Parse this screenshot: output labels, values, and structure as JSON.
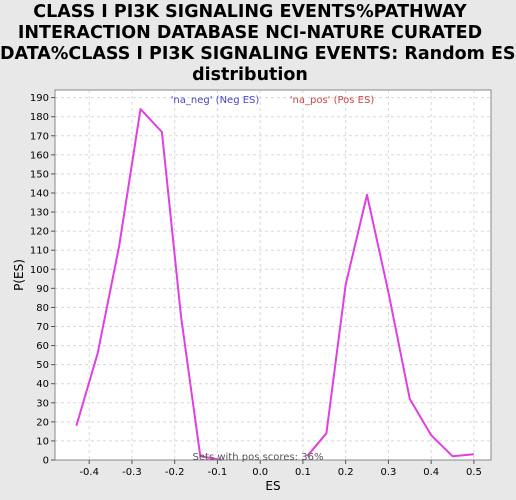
{
  "chart_data": {
    "type": "line",
    "title_lines": [
      "CLASS I PI3K SIGNALING EVENTS%PATHWAY",
      "INTERACTION DATABASE NCI-NATURE CURATED",
      "DATA%CLASS I PI3K SIGNALING EVENTS: Random ES",
      "distribution"
    ],
    "xlabel": "ES",
    "ylabel": "P(ES)",
    "xlim": [
      -0.48,
      0.54
    ],
    "ylim": [
      0,
      194
    ],
    "x_ticks": [
      "-0.4",
      "-0.3",
      "-0.2",
      "-0.1",
      "0.0",
      "0.1",
      "0.2",
      "0.3",
      "0.4",
      "0.5"
    ],
    "y_ticks": [
      "0",
      "10",
      "20",
      "30",
      "40",
      "50",
      "60",
      "70",
      "80",
      "90",
      "100",
      "110",
      "120",
      "130",
      "140",
      "150",
      "160",
      "170",
      "180",
      "190"
    ],
    "grid": true,
    "legend_position": "top-center",
    "series": [
      {
        "name": "'na_neg' (Neg ES)",
        "color": "#e040e0",
        "legend_color": "#4444cc",
        "x": [
          -0.43,
          -0.38,
          -0.33,
          -0.28,
          -0.23,
          -0.185,
          -0.14,
          -0.09
        ],
        "y": [
          18,
          56,
          112,
          184,
          172,
          75,
          2,
          0
        ]
      },
      {
        "name": "'na_pos' (Pos ES)",
        "color": "#e040e0",
        "legend_color": "#cc4444",
        "x": [
          0.11,
          0.155,
          0.2,
          0.25,
          0.3,
          0.35,
          0.4,
          0.45,
          0.5
        ],
        "y": [
          2,
          14,
          92,
          139,
          88,
          32,
          13,
          2,
          3
        ]
      }
    ],
    "annotation": "Sets with pos scores: 36%",
    "line_color": "#e040e0",
    "grid_color": "#d8d8d8"
  }
}
